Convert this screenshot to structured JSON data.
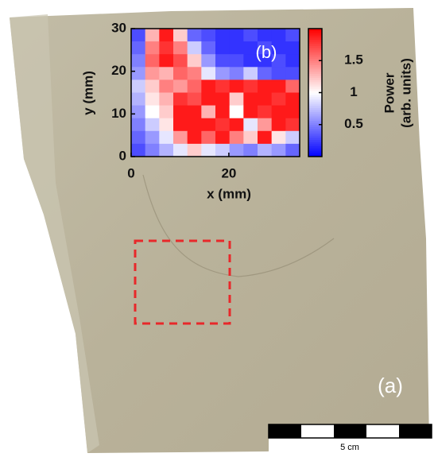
{
  "chart_data": {
    "type": "heatmap",
    "panel_label": "(b)",
    "photo_label": "(a)",
    "scale_label": "5 cm",
    "x_label": "x (mm)",
    "y_label": "y (mm)",
    "colorbar_label": [
      "Power",
      "(arb. units)"
    ],
    "xlim": [
      0,
      34.5
    ],
    "ylim": [
      0,
      30
    ],
    "xticks": [
      0,
      20
    ],
    "yticks": [
      0,
      10,
      20,
      30
    ],
    "clim": [
      0,
      2
    ],
    "cticks": [
      0.5,
      1,
      1.5
    ],
    "colormap": [
      "#0000ff",
      "#ffffff",
      "#ff0000"
    ],
    "z": [
      [
        0.3,
        1.3,
        1.9,
        1.2,
        0.4,
        0.3,
        0.2,
        0.2,
        0.3,
        0.2,
        0.2,
        0.3
      ],
      [
        0.4,
        1.5,
        1.8,
        1.5,
        0.8,
        0.4,
        0.2,
        0.2,
        0.2,
        0.3,
        0.2,
        0.2
      ],
      [
        0.5,
        1.6,
        1.9,
        1.7,
        1.2,
        0.6,
        0.3,
        0.3,
        0.2,
        0.2,
        0.3,
        0.2
      ],
      [
        0.6,
        1.4,
        1.3,
        1.6,
        1.5,
        0.9,
        0.6,
        0.5,
        0.8,
        0.4,
        0.3,
        0.3
      ],
      [
        0.8,
        1.2,
        1.5,
        1.4,
        1.6,
        1.9,
        1.8,
        1.9,
        1.8,
        1.9,
        1.9,
        1.6
      ],
      [
        0.7,
        1.1,
        1.3,
        1.8,
        1.7,
        1.9,
        1.9,
        1.2,
        1.9,
        1.9,
        1.8,
        1.9
      ],
      [
        0.6,
        1.0,
        1.2,
        1.9,
        1.9,
        1.3,
        1.9,
        1.0,
        1.9,
        1.8,
        1.9,
        1.9
      ],
      [
        0.5,
        0.8,
        1.1,
        1.9,
        1.9,
        1.9,
        1.8,
        1.9,
        0.9,
        1.4,
        1.9,
        1.8
      ],
      [
        0.4,
        0.6,
        0.9,
        1.4,
        1.9,
        1.6,
        1.9,
        1.5,
        1.2,
        1.9,
        1.1,
        0.8
      ],
      [
        0.3,
        0.5,
        0.7,
        0.9,
        1.2,
        0.9,
        0.8,
        0.6,
        0.5,
        0.7,
        0.6,
        0.4
      ]
    ]
  }
}
